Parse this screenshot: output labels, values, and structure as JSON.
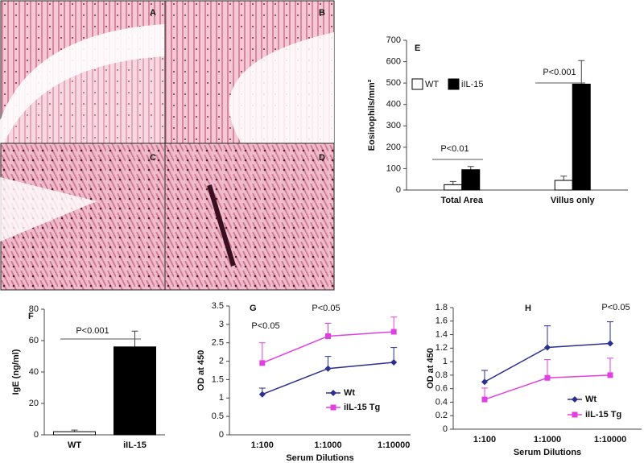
{
  "image_panels": [
    {
      "label": "A"
    },
    {
      "label": "B"
    },
    {
      "label": "C"
    },
    {
      "label": "D"
    }
  ],
  "chart_data": [
    {
      "type": "bar",
      "panel_label": "E",
      "y_label": "Eosinophils/mm²",
      "categories": [
        "Total Area",
        "Villus only"
      ],
      "series": [
        {
          "name": "WT",
          "color": "#ffffff",
          "values": [
            25,
            45
          ],
          "errors": [
            15,
            20
          ]
        },
        {
          "name": "iIL-15",
          "color": "#000000",
          "values": [
            95,
            495
          ],
          "errors": [
            15,
            110
          ]
        }
      ],
      "ylim": [
        0,
        700
      ],
      "yticks": [
        0,
        100,
        200,
        300,
        400,
        500,
        600,
        700
      ],
      "annotations": [
        "P<0.01",
        "P<0.001"
      ]
    },
    {
      "type": "bar",
      "panel_label": "F",
      "y_label": "IgE (ng/ml)",
      "categories": [
        "WT",
        "iIL-15"
      ],
      "values": [
        2,
        56
      ],
      "errors": [
        1,
        10
      ],
      "colors": [
        "#ffffff",
        "#000000"
      ],
      "ylim": [
        0,
        80
      ],
      "yticks": [
        0,
        20,
        40,
        60,
        80
      ],
      "annotations": [
        "P<0.001"
      ]
    },
    {
      "type": "line",
      "panel_label": "G",
      "x_label": "Serum Dilutions",
      "y_label": "OD at 450",
      "categories": [
        "1:100",
        "1:1000",
        "1:10000"
      ],
      "series": [
        {
          "name": "Wt",
          "color": "#2b2f8f",
          "marker": "diamond",
          "values": [
            1.1,
            1.8,
            1.97
          ],
          "errors": [
            0.17,
            0.33,
            0.4
          ]
        },
        {
          "name": "iIL-15 Tg",
          "color": "#e040e0",
          "marker": "square",
          "values": [
            1.95,
            2.68,
            2.8
          ],
          "errors": [
            0.55,
            0.35,
            0.4
          ]
        }
      ],
      "ylim": [
        0,
        3.5
      ],
      "yticks": [
        0,
        0.5,
        1,
        1.5,
        2,
        2.5,
        3,
        3.5
      ],
      "annotations": [
        "P<0.05",
        "P<0.05"
      ]
    },
    {
      "type": "line",
      "panel_label": "H",
      "x_label": "Serum Dilutions",
      "y_label": "OD at 450",
      "categories": [
        "1:100",
        "1:1000",
        "1:10000"
      ],
      "series": [
        {
          "name": "Wt",
          "color": "#2b2f8f",
          "marker": "diamond",
          "values": [
            0.7,
            1.21,
            1.27
          ],
          "errors": [
            0.17,
            0.32,
            0.32
          ]
        },
        {
          "name": "iIL-15 Tg",
          "color": "#e040e0",
          "marker": "square",
          "values": [
            0.44,
            0.76,
            0.8
          ],
          "errors": [
            0.17,
            0.27,
            0.25
          ]
        }
      ],
      "ylim": [
        0,
        1.8
      ],
      "yticks": [
        0,
        0.2,
        0.4,
        0.6,
        0.8,
        1,
        1.2,
        1.4,
        1.6,
        1.8
      ],
      "annotations": [
        "P<0.05"
      ]
    }
  ]
}
